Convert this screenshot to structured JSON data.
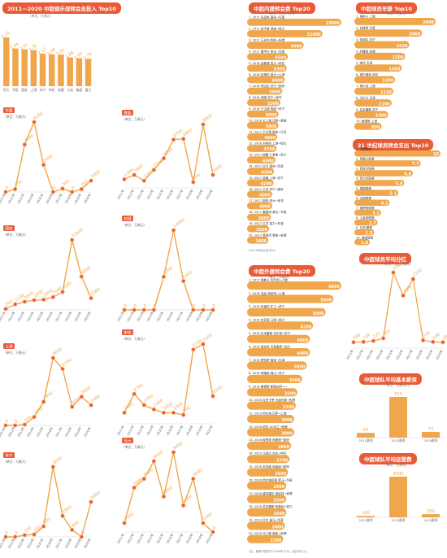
{
  "colors": {
    "accent": "#e95a36",
    "bar": "#f0a64a",
    "dot": "#e95a36"
  },
  "top10": {
    "title": "2011—2020 中超俱乐部转会总投入 Top10",
    "unit": "（单位：亿美元）",
    "categories": [
      "恒大",
      "华夏",
      "国安",
      "上港",
      "苏宁",
      "申花",
      "权健",
      "大连",
      "鲁能",
      "富力"
    ],
    "values": [
      3.18,
      2.46,
      2.41,
      2.35,
      2.12,
      2.08,
      2.06,
      1.88,
      1.83,
      1.79
    ]
  },
  "cities": [
    {
      "name": "华夏",
      "unit": "（单位：万美元）",
      "years": [
        "2011年",
        "2012年",
        "2013年",
        "2014年",
        "2015年",
        "2016年",
        "2017年",
        "2018年",
        "2019年",
        "2020年"
      ],
      "values": [
        0,
        250,
        4200,
        6200,
        2400,
        0,
        300,
        0,
        250,
        1000
      ]
    },
    {
      "name": "鲁能",
      "unit": "（单位：万美元）",
      "years": [
        "2011年",
        "2012年",
        "2013年",
        "2014年",
        "2015年",
        "2016年",
        "2017年",
        "2018年",
        "2019年",
        "2020年"
      ],
      "values": [
        1200,
        1800,
        1000,
        2500,
        4100,
        6700,
        6800,
        800,
        8800,
        1800
      ]
    },
    {
      "name": "国安",
      "unit": "（单位：万美元）",
      "years": [
        "2011年",
        "2012年",
        "2013年",
        "2014年",
        "2015年",
        "2016年",
        "2017年",
        "2018年",
        "2019年",
        "2020年"
      ],
      "values": [
        200,
        1100,
        1600,
        1900,
        2000,
        2500,
        3500,
        13640,
        6500,
        2300
      ]
    },
    {
      "name": "权健",
      "unit": "（单位：万美元）",
      "years": [
        "2011年",
        "2012年",
        "2013年",
        "2014年",
        "2015年",
        "2016年",
        "2017年",
        "2018年",
        "2019年",
        "2020年"
      ],
      "values": [
        0,
        0,
        0,
        0,
        6200,
        14900,
        5400,
        0,
        0,
        0
      ]
    },
    {
      "name": "上港",
      "unit": "（单位：万美元）",
      "years": [
        "2011年",
        "2012年",
        "2013年",
        "2014年",
        "2015年",
        "2016年",
        "2017年",
        "2018年",
        "2019年",
        "2020年"
      ],
      "values": [
        0,
        0,
        100,
        1000,
        2800,
        8000,
        6700,
        2200,
        3400,
        2400
      ]
    },
    {
      "name": "申花",
      "unit": "（单位：万美元）",
      "years": [
        "2011年",
        "2012年",
        "2013年",
        "2014年",
        "2015年",
        "2016年",
        "2017年",
        "2018年",
        "2019年",
        "2020年"
      ],
      "values": [
        1000,
        2700,
        1700,
        1300,
        1000,
        1000,
        800,
        6700,
        7200,
        2500
      ]
    },
    {
      "name": "苏宁",
      "unit": "（单位：万美元）",
      "years": [
        "2011年",
        "2012年",
        "2013年",
        "2014年",
        "2015年",
        "2016年",
        "2017年",
        "2018年",
        "2019年",
        "2020年"
      ],
      "values": [
        0,
        0,
        150,
        200,
        900,
        6000,
        1800,
        600,
        0,
        3000
      ]
    },
    {
      "name": "恒大",
      "unit": "（单位：万美元）",
      "years": [
        "2011年",
        "2012年",
        "2013年",
        "2014年",
        "2015年",
        "2016年",
        "2017年",
        "2018年",
        "2019年",
        "2020年"
      ],
      "values": [
        1000,
        5000,
        6000,
        8000,
        4000,
        9000,
        3000,
        6000,
        1000,
        0
      ]
    }
  ],
  "domestic": {
    "title": "中超内援转会费 Top20",
    "unit": "（单位：万元人民币）",
    "rows": [
      "1. 2017 张呈栋 国安→华夏",
      "2. 2017 赵宇豪 绿城→恒大",
      "3. 2017 王永珀 鲁能→权健",
      "4. 2017 董学升 泰达→华夏",
      "5. 2016 金敬道 恒大→申花",
      "6. 2016 张琳芃 恒大→上港",
      "7. 2016 郑达伦 苏宁→国安",
      "8. 2016 吴曦 苏宁→申花",
      "9. 2016 于汉超 鲁能→苏宁",
      "10. 2018 王上源 河南→鲁能",
      "11. 2017 于大宝 国安→辽足",
      "12. 2018 刘奕鸣 上港→恒大",
      "13. 2017 谢鹏飞 鲁能→苏宁",
      "14. 2017 孙可 国安→华夏",
      "15. 2017 吴曦 上港→苏宁",
      "16. 2017 于洋 苏宁→国安",
      "17. 2017 郜林 恒大→申花",
      "18. 2017 董春雨 泰达→华夏",
      "19. 2017 王洋 富力→华夏",
      "20. 2017 蒿俊闵 鲁能→权健"
    ],
    "values": [
      15000,
      12000,
      9000,
      6500,
      6300,
      6000,
      5600,
      5300,
      5000,
      5000,
      4800,
      4700,
      4500,
      4300,
      4200,
      4000,
      4000,
      3800,
      3500,
      3400
    ],
    "notes": [
      "（注：新转会也入）",
      "（2017年及以后不计）"
    ]
  },
  "foreign": {
    "title": "中超外援转会费 Top20",
    "unit": "（单位：万美元）",
    "rows": [
      "1. 2017 奥斯卡 切尔西→上港",
      "2. 2016 浩克 泽尼特→上港",
      "3. 2016 特谢拉 矿工→苏宁",
      "4. 2016 杰克逊 马竞→恒大",
      "5. 2016 拉米雷斯 切尔西→苏宁",
      "6. 2016 高拉特 克鲁塞罗→恒大",
      "7. 2016 蒙特罗 葡体→天津",
      "8. 2016 阿隆索 佛山→苏宁",
      "9. 2016 格德斯 斯图加特→一",
      "10. 2016 吉安卡罗 乌迪内斯→权健",
      "11. 2019 阿尔纳 巴萨→上港",
      "12. 2018 帕托 AC米兰→权健",
      "13. 2016 穆里奇 利雅得→国安",
      "14. 2019 马竞比 吉达→申花",
      "15. 2016 本特纳 阿森纳→国安",
      "16. 2016 热尔维尼奥 罗马→华夏",
      "17. 2018 维特塞尔 泽尼特→权健",
      "18. 2018 苏亚雷斯 阿森纳→富力",
      "19. 2019 贝尔 皇马→华夏",
      "20. 2016 马丁斯 葡体→权健"
    ],
    "values": [
      6000,
      5500,
      5000,
      4200,
      4000,
      4000,
      3800,
      3500,
      3200,
      3100,
      3000,
      3000,
      2800,
      2700,
      2600,
      2500,
      2500,
      2500,
      2400,
      2300
    ],
    "note": "（注：奥斯卡签约于2016年12月，此处不计入）"
  },
  "clubs": {
    "title": "中超球员年薪 Top10",
    "unit": "（单位：万美元）",
    "rows": [
      "1. 奥斯卡 上港",
      "2. 拉维奇 华夏",
      "3. 特谢拉 苏宁",
      "4. 阿隆索 权健",
      "5. 帕托 天津",
      "6. 塔尔德利 申花",
      "7. 胡尔克 上港",
      "8. 马尔卡 天津",
      "9. 拉米雷斯 苏宁",
      "10. 格德斯 上港"
    ],
    "values": [
      2400,
      2000,
      1620,
      1500,
      1400,
      1200,
      1150,
      1100,
      1000,
      800
    ]
  },
  "century": {
    "title": "21 世纪球员转会支出 Top10",
    "rows": [
      "1. 中超联赛",
      "2. 英格兰联赛",
      "3. 西班牙联赛",
      "4. 意大利联赛",
      "5. 德国联赛",
      "6. 法国联赛",
      "7. 俄罗斯联赛",
      "8. 土耳其联赛",
      "9. 日本J联赛",
      "10. 美国联赛"
    ],
    "values": [
      10.0,
      7.7,
      6.8,
      5.8,
      5.1,
      4.1,
      3.1,
      2.7,
      2.3,
      1.8
    ]
  },
  "avgBonus": {
    "title": "中超球员平均分红",
    "unit": "（单位：万元人民币）",
    "years": [
      "2011年",
      "2012年",
      "2013年",
      "2014年",
      "2015年",
      "2016年",
      "2017年",
      "2018年",
      "2019年",
      "2020年"
    ],
    "values": [
      180,
      190,
      220,
      300,
      2300,
      1600,
      2100,
      240,
      190,
      180
    ]
  },
  "ticket": {
    "title": "中超球队平均基本薪资",
    "unit": "（单位：万美元/月）",
    "categories": [
      "2011赛季",
      "2015赛季",
      "2019赛季"
    ],
    "values": [
      60,
      520,
      73
    ]
  },
  "operating": {
    "title": "中超球队平均运营费",
    "unit": "（单位：万美元）",
    "categories": [
      "2011赛季",
      "2015赛季",
      "2019赛季"
    ],
    "values": [
      160,
      4500,
      350
    ]
  }
}
